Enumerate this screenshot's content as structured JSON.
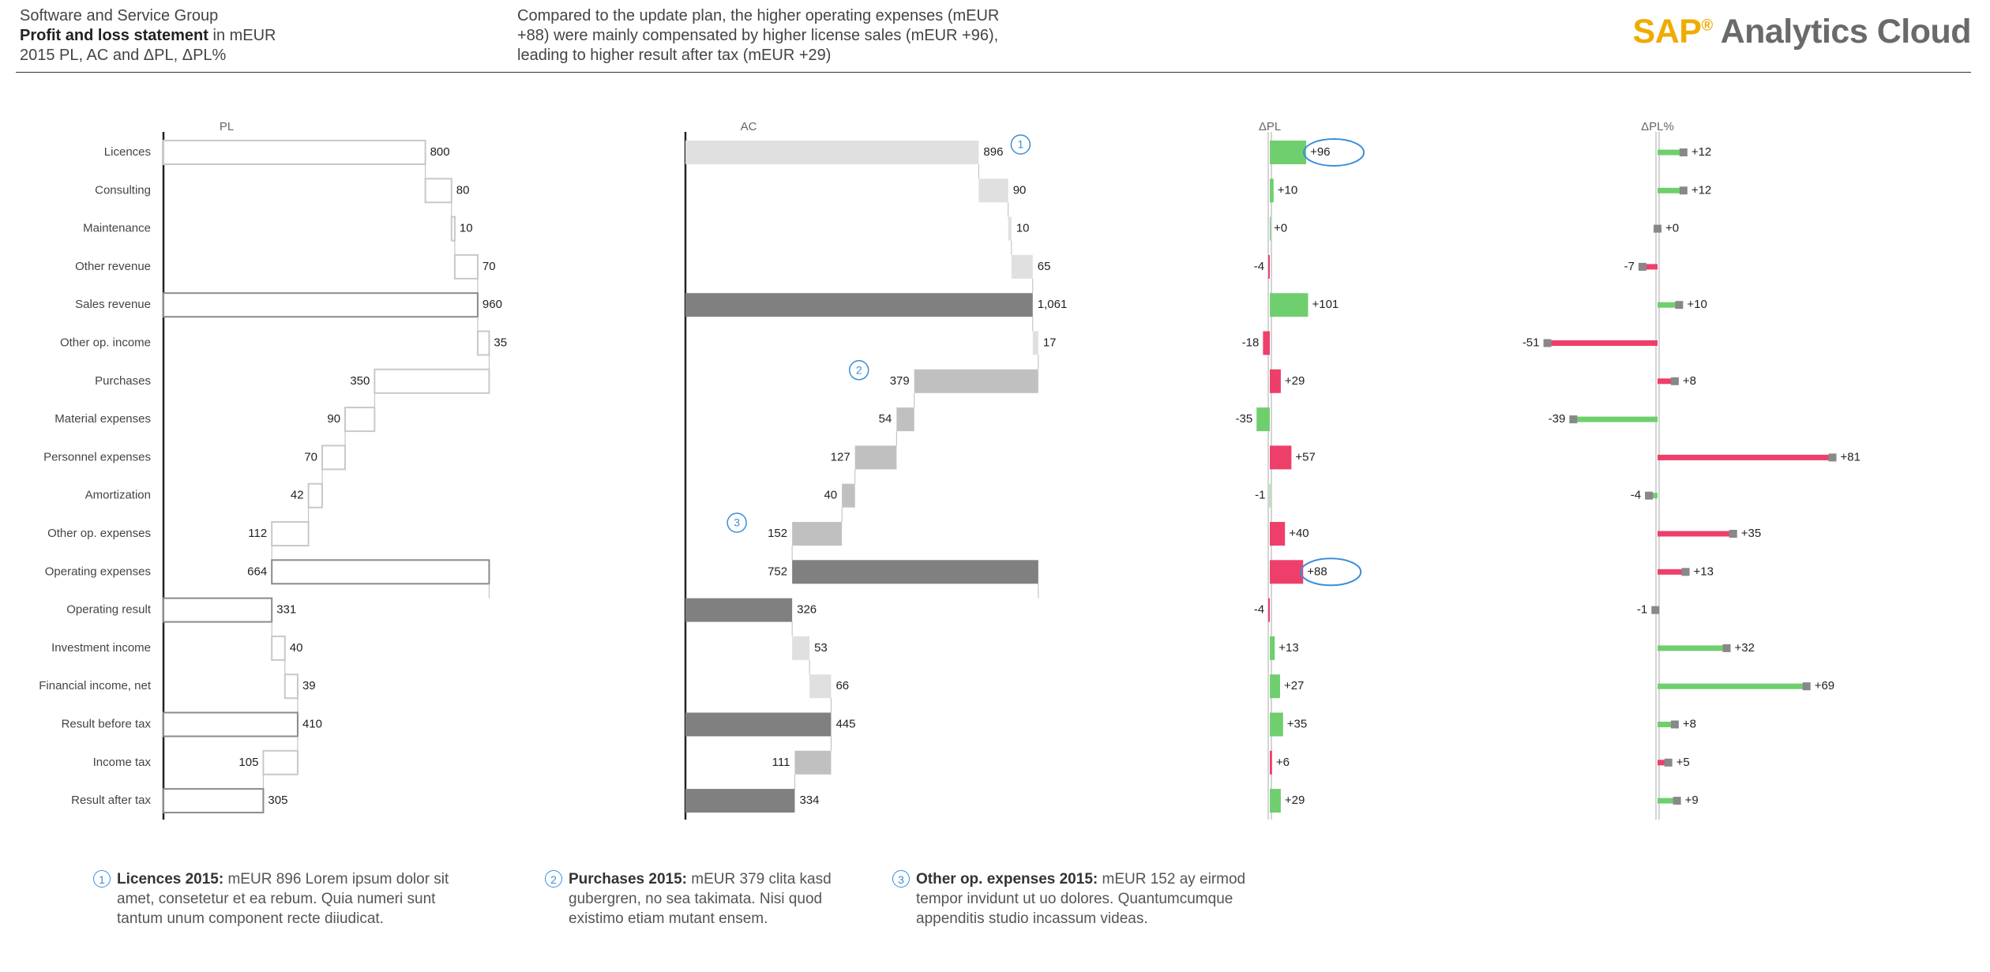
{
  "header": {
    "org": "Software and Service Group",
    "title_bold": "Profit and loss statement",
    "title_rest": " in mEUR",
    "subtitle": "2015 PL, AC and ΔPL, ΔPL%",
    "comment": "Compared to the update plan, the higher operating expenses (mEUR +88) were mainly compensated by higher license sales (mEUR +96), leading to higher result after tax (mEUR +29)"
  },
  "logo": {
    "sap": "SAP",
    "reg": "®",
    "product": "Analytics Cloud"
  },
  "colors": {
    "axis": "#222222",
    "pl_stroke": "#c8c8c8",
    "pl_total_stroke": "#8a8a8a",
    "ac_fill": "#c0c0c0",
    "ac_light_fill": "#e0e0e0",
    "ac_total": "#808080",
    "good": "#6fcf6f",
    "bad": "#ee3f6b",
    "marker": "#888888",
    "highlight": "#3b8ed8"
  },
  "chart_data": {
    "type": "waterfall",
    "categories": [
      "Licences",
      "Consulting",
      "Maintenance",
      "Other revenue",
      "Sales revenue",
      "Other op. income",
      "Purchases",
      "Material expenses",
      "Personnel expenses",
      "Amortization",
      "Other op. expenses",
      "Operating expenses",
      "Operating result",
      "Investment income",
      "Financial income, net",
      "Result before tax",
      "Income tax",
      "Result after tax"
    ],
    "row_kind": [
      "add",
      "add",
      "add",
      "add",
      "total",
      "add",
      "sub",
      "sub",
      "sub",
      "sub",
      "sub",
      "subtotal_span",
      "total",
      "add",
      "add",
      "total",
      "sub",
      "total"
    ],
    "panels": {
      "PL": {
        "title": "PL",
        "values": [
          800,
          80,
          10,
          70,
          960,
          35,
          350,
          90,
          70,
          42,
          112,
          664,
          331,
          40,
          39,
          410,
          105,
          305
        ],
        "labels": [
          "800",
          "80",
          "10",
          "70",
          "960",
          "35",
          "350",
          "90",
          "70",
          "42",
          "112",
          "664",
          "331",
          "40",
          "39",
          "410",
          "105",
          "305"
        ]
      },
      "AC": {
        "title": "AC",
        "values": [
          896,
          90,
          10,
          65,
          1061,
          17,
          379,
          54,
          127,
          40,
          152,
          752,
          326,
          53,
          66,
          445,
          111,
          334
        ],
        "labels": [
          "896",
          "90",
          "10",
          "65",
          "1,061",
          "17",
          "379",
          "54",
          "127",
          "40",
          "152",
          "752",
          "326",
          "53",
          "66",
          "445",
          "111",
          "334"
        ]
      },
      "dPL": {
        "title": "ΔPL",
        "values": [
          96,
          10,
          0,
          -4,
          101,
          -18,
          29,
          -35,
          57,
          -1,
          40,
          88,
          -4,
          13,
          27,
          35,
          6,
          29
        ],
        "labels": [
          "+96",
          "+10",
          "+0",
          "-4",
          "+101",
          "-18",
          "+29",
          "-35",
          "+57",
          "-1",
          "+40",
          "+88",
          "-4",
          "+13",
          "+27",
          "+35",
          "+6",
          "+29"
        ],
        "good": [
          true,
          true,
          true,
          false,
          true,
          false,
          false,
          true,
          false,
          true,
          false,
          false,
          false,
          true,
          true,
          true,
          false,
          true
        ]
      },
      "dPLpct": {
        "title": "ΔPL%",
        "values": [
          12,
          12,
          0,
          -7,
          10,
          -51,
          8,
          -39,
          81,
          -4,
          35,
          13,
          -1,
          32,
          69,
          8,
          5,
          9
        ],
        "labels": [
          "+12",
          "+12",
          "+0",
          "-7",
          "+10",
          "-51",
          "+8",
          "-39",
          "+81",
          "-4",
          "+35",
          "+13",
          "-1",
          "+32",
          "+69",
          "+8",
          "+5",
          "+9"
        ],
        "good": [
          true,
          true,
          true,
          false,
          true,
          false,
          false,
          true,
          false,
          true,
          false,
          false,
          false,
          true,
          true,
          true,
          false,
          true
        ]
      }
    },
    "annotations": [
      {
        "id": "1",
        "row": 0,
        "panel": "AC"
      },
      {
        "id": "2",
        "row": 6,
        "panel": "AC"
      },
      {
        "id": "3",
        "row": 10,
        "panel": "AC"
      }
    ],
    "highlights": [
      {
        "row": 0,
        "panel": "dPL"
      },
      {
        "row": 11,
        "panel": "dPL"
      }
    ]
  },
  "notes": [
    {
      "badge": "1",
      "title": "Licences 2015:",
      "text": " mEUR 896 Lorem ipsum dolor sit amet, consetetur et ea rebum. Quia numeri sunt tantum unum component recte diiudicat."
    },
    {
      "badge": "2",
      "title": "Purchases 2015:",
      "text": " mEUR 379 clita kasd gubergren, no sea takimata. Nisi quod existimo etiam mutant ensem."
    },
    {
      "badge": "3",
      "title": "Other op. expenses 2015:",
      "text": " mEUR 152 ay eirmod tempor invidunt ut uo dolores. Quantumcumque appenditis studio incassum videas."
    }
  ]
}
